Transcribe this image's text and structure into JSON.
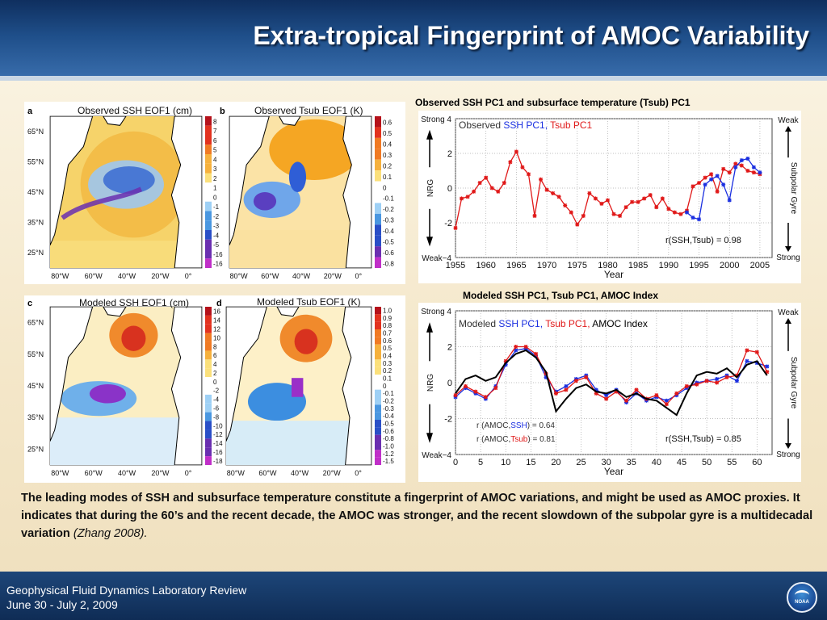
{
  "slide": {
    "title": "Extra-tropical Fingerprint of AMOC Variability",
    "footer_line1": "Geophysical Fluid Dynamics Laboratory Review",
    "footer_line2": "June 30 - July 2, 2009",
    "logo_text": "NOAA"
  },
  "maps": [
    {
      "letter": "a",
      "title": "Observed SSH EOF1 (cm)",
      "colorbar": [
        "8",
        "7",
        "6",
        "5",
        "4",
        "3",
        "2",
        "1",
        "0",
        "-1",
        "-2",
        "-3",
        "-4",
        "-5",
        "-16",
        "-16"
      ],
      "lat_ticks": [
        "65°N",
        "55°N",
        "45°N",
        "35°N",
        "25°N"
      ],
      "lon_ticks": [
        "80°W",
        "60°W",
        "40°W",
        "20°W",
        "0°"
      ]
    },
    {
      "letter": "b",
      "title": "Observed Tsub EOF1 (K)",
      "colorbar": [
        "0.6",
        "0.5",
        "0.4",
        "0.3",
        "0.2",
        "0.1",
        "0",
        "-0.1",
        "-0.2",
        "-0.3",
        "-0.4",
        "-0.5",
        "-0.6",
        "-0.8"
      ],
      "lat_ticks": [],
      "lon_ticks": [
        "80°W",
        "60°W",
        "40°W",
        "20°W",
        "0°"
      ]
    },
    {
      "letter": "c",
      "title": "Modeled SSH EOF1 (cm)",
      "colorbar": [
        "16",
        "14",
        "12",
        "10",
        "8",
        "6",
        "4",
        "2",
        "0",
        "-2",
        "-4",
        "-6",
        "-8",
        "-10",
        "-12",
        "-14",
        "-16",
        "-18"
      ],
      "lat_ticks": [
        "65°N",
        "55°N",
        "45°N",
        "35°N",
        "25°N"
      ],
      "lon_ticks": [
        "80°W",
        "60°W",
        "40°W",
        "20°W",
        "0°"
      ]
    },
    {
      "letter": "d",
      "title": "Modeled Tsub EOF1 (K)",
      "colorbar": [
        "1.0",
        "0.9",
        "0.8",
        "0.7",
        "0.6",
        "0.5",
        "0.4",
        "0.3",
        "0.2",
        "0.1",
        "0",
        "-0.1",
        "-0.2",
        "-0.3",
        "-0.4",
        "-0.5",
        "-0.6",
        "-0.8",
        "-1.0",
        "-1.2",
        "-1.5"
      ],
      "lat_ticks": [],
      "lon_ticks": [
        "80°W",
        "60°W",
        "40°W",
        "20°W",
        "0°"
      ]
    }
  ],
  "obs_chart": {
    "heading": "Observed SSH PC1 and subsurface temperature (Tsub) PC1",
    "legend_prefix": "Observed",
    "legend_ssh": "SSH PC1,",
    "legend_tsub": "Tsub PC1",
    "ylabel": "NRG",
    "xlabel": "Year",
    "y_strong": "Strong",
    "y_weak": "Weak",
    "right_top": "Weak",
    "right_label": "Subpolar Gyre",
    "right_bottom": "Strong",
    "annotation": "r(SSH,Tsub) = 0.98",
    "colors": {
      "ssh": "#1a2fe0",
      "tsub": "#e01818"
    }
  },
  "model_chart": {
    "heading": "Modeled SSH PC1, Tsub PC1, AMOC Index",
    "legend_prefix": "Modeled",
    "legend_ssh": "SSH PC1,",
    "legend_tsub": "Tsub PC1,",
    "legend_amoc": "AMOC Index",
    "ylabel": "NRG",
    "xlabel": "Year",
    "y_strong": "Strong",
    "y_weak": "Weak",
    "right_top": "Weak",
    "right_label": "Subpolar Gyre",
    "right_bottom": "Strong",
    "r_amoc_ssh_prefix": "r (AMOC,",
    "r_amoc_ssh_name": "SSH",
    "r_amoc_ssh_val": ") = 0.64",
    "r_amoc_tsub_prefix": "r (AMOC,",
    "r_amoc_tsub_name": "Tsub",
    "r_amoc_tsub_val": ") = 0.81",
    "annotation": "r(SSH,Tsub) = 0.85",
    "colors": {
      "ssh": "#1a2fe0",
      "tsub": "#e01818",
      "amoc": "#000000"
    }
  },
  "caption": {
    "text": "The leading modes of SSH and subsurface temperature constitute a fingerprint of AMOC variations, and might be used as AMOC proxies. It indicates that during the 60’s and the recent decade, the AMOC was stronger, and the recent slowdown of the subpolar gyre is a multidecadal variation ",
    "citation": "(Zhang 2008)."
  },
  "chart_data": [
    {
      "type": "line",
      "xlim": [
        1955,
        2007
      ],
      "ylim": [
        -4,
        4
      ],
      "x_ticks": [
        1955,
        1960,
        1965,
        1970,
        1975,
        1980,
        1985,
        1990,
        1995,
        2000,
        2005
      ],
      "y_ticks": [
        -4,
        -2,
        0,
        2,
        4
      ],
      "series": [
        {
          "name": "Tsub PC1",
          "x": [
            1955,
            1956,
            1957,
            1958,
            1959,
            1960,
            1961,
            1962,
            1963,
            1964,
            1965,
            1966,
            1967,
            1968,
            1969,
            1970,
            1971,
            1972,
            1973,
            1974,
            1975,
            1976,
            1977,
            1978,
            1979,
            1980,
            1981,
            1982,
            1983,
            1984,
            1985,
            1986,
            1987,
            1988,
            1989,
            1990,
            1991,
            1992,
            1993,
            1994,
            1995,
            1996,
            1997,
            1998,
            1999,
            2000,
            2001,
            2002,
            2003,
            2004,
            2005
          ],
          "values": [
            -2.3,
            -0.6,
            -0.5,
            -0.2,
            0.3,
            0.6,
            0.0,
            -0.2,
            0.3,
            1.5,
            2.1,
            1.2,
            0.8,
            -1.6,
            0.5,
            -0.1,
            -0.3,
            -0.5,
            -1.0,
            -1.4,
            -2.1,
            -1.6,
            -0.3,
            -0.6,
            -0.9,
            -0.7,
            -1.5,
            -1.6,
            -1.1,
            -0.8,
            -0.8,
            -0.6,
            -0.4,
            -1.1,
            -0.6,
            -1.2,
            -1.4,
            -1.5,
            -1.3,
            0.1,
            0.3,
            0.6,
            0.8,
            -0.2,
            1.1,
            0.9,
            1.4,
            1.3,
            1.0,
            0.9,
            0.8
          ]
        },
        {
          "name": "SSH PC1",
          "x": [
            1993,
            1994,
            1995,
            1996,
            1997,
            1998,
            1999,
            2000,
            2001,
            2002,
            2003,
            2004,
            2005
          ],
          "values": [
            -1.4,
            -1.7,
            -1.8,
            0.2,
            0.5,
            0.7,
            0.2,
            -0.7,
            1.2,
            1.6,
            1.7,
            1.2,
            0.9
          ]
        }
      ]
    },
    {
      "type": "line",
      "xlim": [
        0,
        63
      ],
      "ylim": [
        -4,
        4
      ],
      "x_ticks": [
        0,
        5,
        10,
        15,
        20,
        25,
        30,
        35,
        40,
        45,
        50,
        55,
        60
      ],
      "y_ticks": [
        -4,
        -2,
        0,
        2,
        4
      ],
      "series": [
        {
          "name": "SSH PC1",
          "x": [
            0,
            2,
            4,
            6,
            8,
            10,
            12,
            14,
            16,
            18,
            20,
            22,
            24,
            26,
            28,
            30,
            32,
            34,
            36,
            38,
            40,
            42,
            44,
            46,
            48,
            50,
            52,
            54,
            56,
            58,
            60,
            62
          ],
          "values": [
            -0.8,
            -0.3,
            -0.6,
            -0.9,
            -0.2,
            1.0,
            1.8,
            1.9,
            1.5,
            0.3,
            -0.5,
            -0.2,
            0.2,
            0.4,
            -0.4,
            -0.7,
            -0.4,
            -1.1,
            -0.6,
            -1.0,
            -0.8,
            -1.0,
            -0.7,
            -0.3,
            0.0,
            0.1,
            0.2,
            0.4,
            0.1,
            1.2,
            1.1,
            0.9
          ]
        },
        {
          "name": "Tsub PC1",
          "x": [
            0,
            2,
            4,
            6,
            8,
            10,
            12,
            14,
            16,
            18,
            20,
            22,
            24,
            26,
            28,
            30,
            32,
            34,
            36,
            38,
            40,
            42,
            44,
            46,
            48,
            50,
            52,
            54,
            56,
            58,
            60,
            62
          ],
          "values": [
            -0.7,
            -0.2,
            -0.5,
            -0.8,
            -0.3,
            1.2,
            2.0,
            2.0,
            1.6,
            0.5,
            -0.6,
            -0.4,
            0.1,
            0.3,
            -0.6,
            -0.9,
            -0.5,
            -1.0,
            -0.4,
            -0.9,
            -0.7,
            -1.2,
            -0.6,
            -0.2,
            -0.1,
            0.1,
            0.0,
            0.3,
            0.4,
            1.8,
            1.7,
            0.6
          ]
        },
        {
          "name": "AMOC Index",
          "x": [
            0,
            2,
            4,
            6,
            8,
            10,
            12,
            14,
            16,
            18,
            20,
            22,
            24,
            26,
            28,
            30,
            32,
            34,
            36,
            38,
            40,
            42,
            44,
            46,
            48,
            50,
            52,
            54,
            56,
            58,
            60,
            62
          ],
          "values": [
            -0.6,
            0.2,
            0.4,
            0.1,
            0.3,
            1.1,
            1.6,
            1.8,
            1.4,
            0.6,
            -1.6,
            -0.9,
            -0.3,
            -0.1,
            -0.5,
            -0.6,
            -0.4,
            -0.8,
            -0.6,
            -0.9,
            -1.0,
            -1.4,
            -1.8,
            -0.6,
            0.4,
            0.6,
            0.5,
            0.8,
            0.3,
            1.0,
            1.2,
            0.4
          ]
        }
      ]
    }
  ]
}
